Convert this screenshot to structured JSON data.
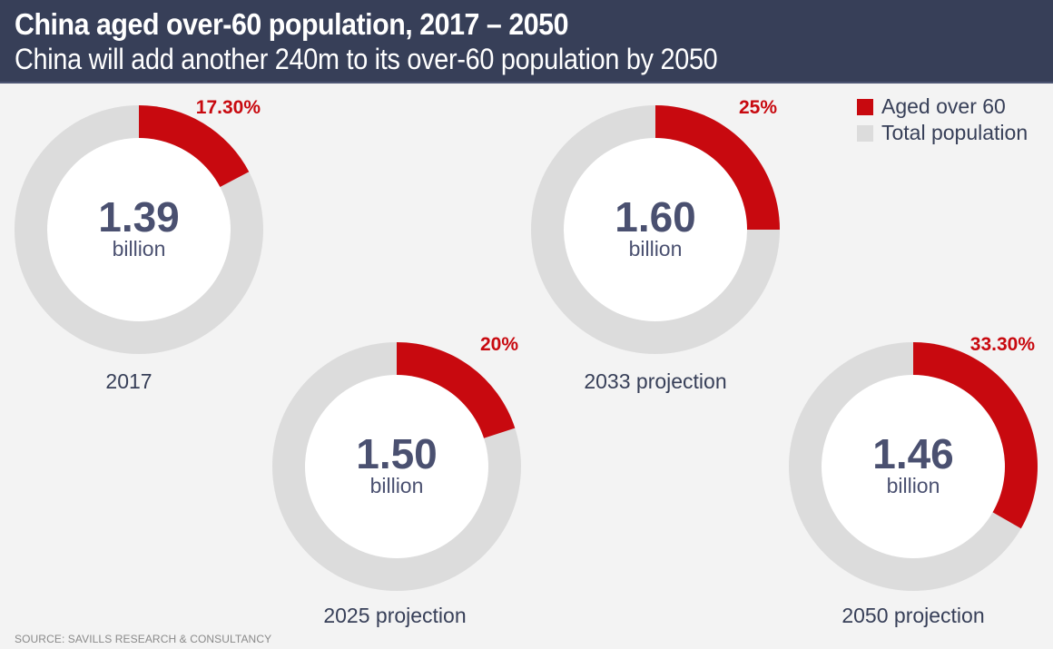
{
  "header": {
    "title": "China aged over-60 population, 2017 – 2050",
    "subtitle": "China will add another 240m to its over-60 population by 2050"
  },
  "legend": {
    "items": [
      {
        "label": "Aged over 60",
        "color": "#c8090f"
      },
      {
        "label": "Total population",
        "color": "#dcdcdc"
      }
    ]
  },
  "source": "SOURCE: SAVILLS RESEARCH & CONSULTANCY",
  "colors": {
    "accent": "#c8090f",
    "ring": "#dcdcdc",
    "text": "#4a5070",
    "label": "#373f58",
    "center": "#ffffff"
  },
  "chart_data": {
    "type": "pie",
    "title": "China aged over-60 population, 2017 – 2050",
    "subtitle": "China will add another 240m to its over-60 population by 2050",
    "legend": [
      "Aged over 60",
      "Total population"
    ],
    "legend_position": "top-right",
    "donuts": [
      {
        "label": "2017",
        "total": "1.39",
        "unit": "billion",
        "aged_over_60_pct": 17.3,
        "pct_label": "17.30%"
      },
      {
        "label": "2025 projection",
        "total": "1.50",
        "unit": "billion",
        "aged_over_60_pct": 20,
        "pct_label": "20%"
      },
      {
        "label": "2033 projection",
        "total": "1.60",
        "unit": "billion",
        "aged_over_60_pct": 25,
        "pct_label": "25%"
      },
      {
        "label": "2050 projection",
        "total": "1.46",
        "unit": "billion",
        "aged_over_60_pct": 33.3,
        "pct_label": "33.30%"
      }
    ]
  }
}
